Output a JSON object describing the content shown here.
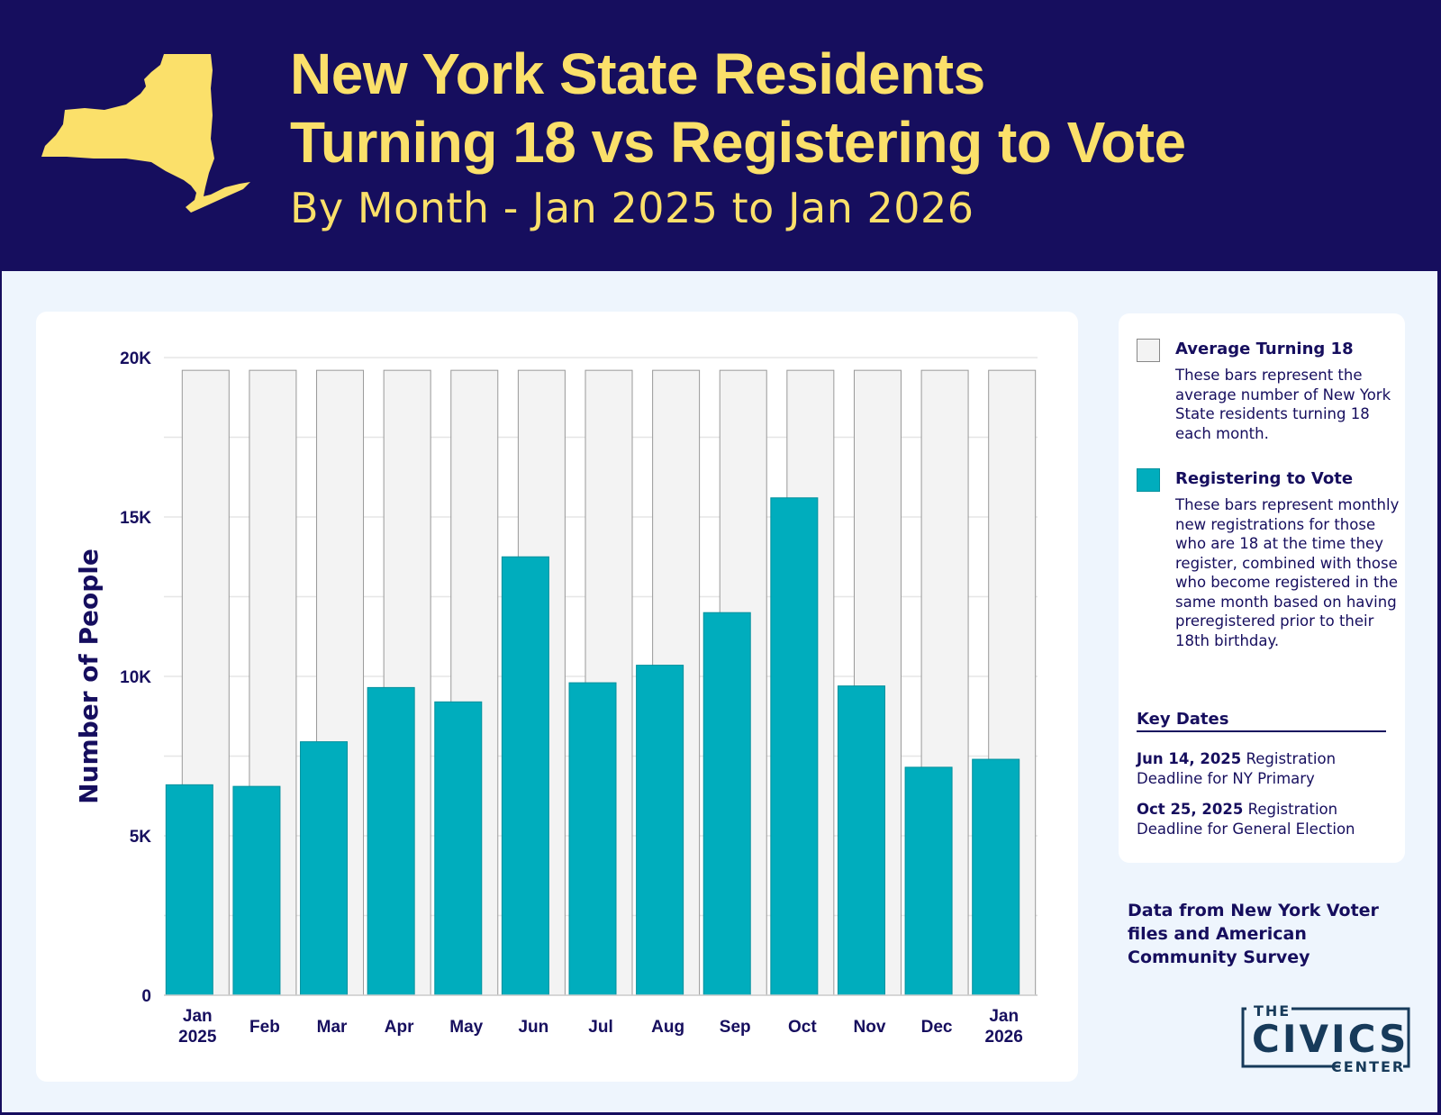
{
  "header": {
    "title_line1": "New York State Residents",
    "title_line2": "Turning 18 vs Registering to Vote",
    "subtitle": "By Month - Jan 2025 to Jan 2026"
  },
  "colors": {
    "header_bg": "#160e5e",
    "title": "#fbe06a",
    "registering": "#00adbd",
    "turning18": "#f3f3f3",
    "text": "#160e5e"
  },
  "legend": {
    "items": [
      {
        "label": "Average Turning 18",
        "description": "These bars represent the average number of New York State residents turning 18 each month."
      },
      {
        "label": "Registering to Vote",
        "description": "These bars represent monthly new registrations for those who are 18 at the time they register, combined with those who become registered in the same month based on having preregistered prior to their 18th birthday."
      }
    ],
    "key_dates_title": "Key Dates",
    "key_dates": [
      {
        "date": "Jun 14, 2025",
        "text": "Registration Deadline for NY Primary"
      },
      {
        "date": "Oct 25, 2025",
        "text": "Registration Deadline for General Election"
      }
    ]
  },
  "source": "Data from New York Voter files and American Community Survey",
  "logo": {
    "line1": "THE",
    "line2": "CIVICS",
    "line3": "CENTER"
  },
  "chart_data": {
    "type": "bar",
    "ylabel": "Number of People",
    "xlabel": "",
    "ylim": [
      0,
      20000
    ],
    "yticks": [
      0,
      5000,
      10000,
      15000,
      20000
    ],
    "ytick_labels": [
      "0",
      "5K",
      "10K",
      "15K",
      "20K"
    ],
    "grid": true,
    "categories": [
      "Jan\n2025",
      "Feb",
      "Mar",
      "Apr",
      "May",
      "Jun",
      "Jul",
      "Aug",
      "Sep",
      "Oct",
      "Nov",
      "Dec",
      "Jan\n2026"
    ],
    "series": [
      {
        "name": "Average Turning 18",
        "values": [
          19600,
          19600,
          19600,
          19600,
          19600,
          19600,
          19600,
          19600,
          19600,
          19600,
          19600,
          19600,
          19600
        ]
      },
      {
        "name": "Registering to Vote",
        "values": [
          6600,
          6550,
          7950,
          9650,
          9200,
          13750,
          9800,
          10350,
          12000,
          15600,
          9700,
          7150,
          7400
        ]
      }
    ]
  }
}
